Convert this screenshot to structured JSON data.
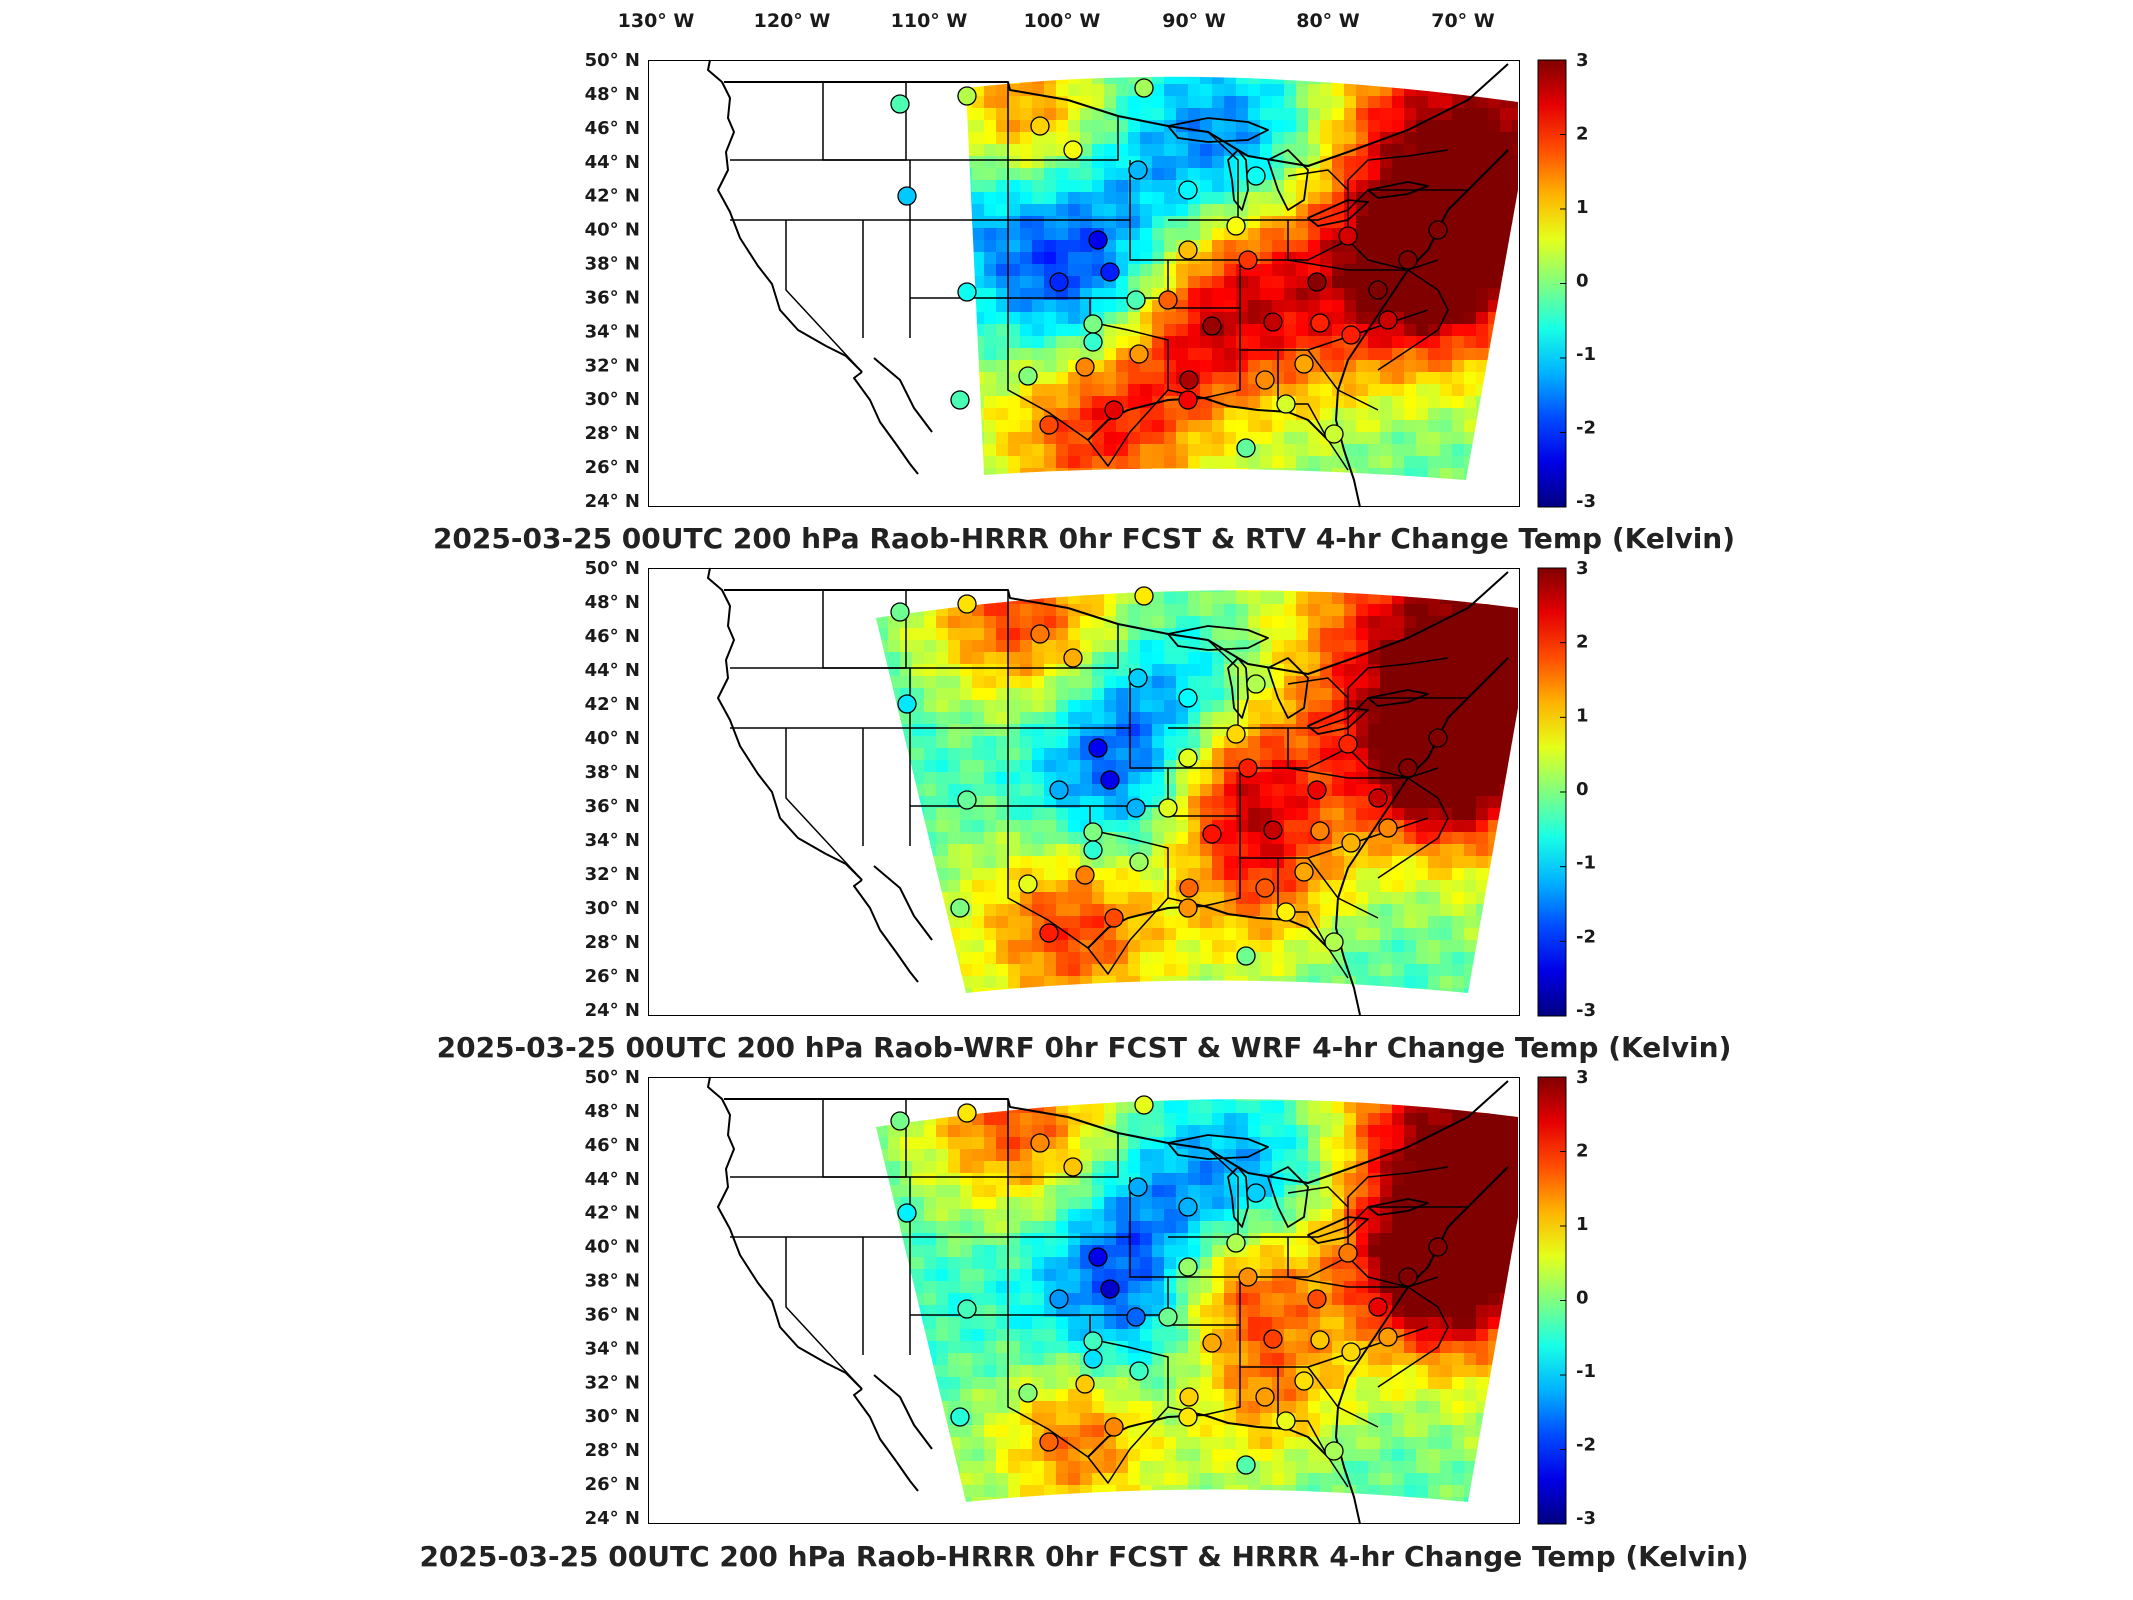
{
  "lon_ticks": [
    "130° W",
    "120° W",
    "110° W",
    "100° W",
    "90° W",
    "80° W",
    "70° W"
  ],
  "lat_ticks": [
    "50° N",
    "48° N",
    "46° N",
    "44° N",
    "42° N",
    "40° N",
    "38° N",
    "36° N",
    "34° N",
    "32° N",
    "30° N",
    "28° N",
    "26° N",
    "24° N"
  ],
  "colorbar": {
    "ticks": [
      "3",
      "2",
      "1",
      "0",
      "-1",
      "-2",
      "-3"
    ],
    "colormap": "jet",
    "range": [
      -3,
      3
    ]
  },
  "panels": [
    {
      "title": "2025-03-25 00UTC 200 hPa Raob-HRRR 0hr FCST & RTV 4-hr Change Temp (Kelvin)",
      "domain": "narrow"
    },
    {
      "title": "2025-03-25 00UTC 200 hPa Raob-WRF 0hr FCST & WRF 4-hr Change Temp (Kelvin)",
      "domain": "wide"
    },
    {
      "title": "2025-03-25 00UTC 200 hPa Raob-HRRR 0hr FCST & HRRR 4-hr Change Temp (Kelvin)",
      "domain": "wide"
    }
  ],
  "map_style": {
    "boundary_color": "#000000",
    "unfilled_color": "#ffffff",
    "marker_edge_color": "#000000"
  }
}
